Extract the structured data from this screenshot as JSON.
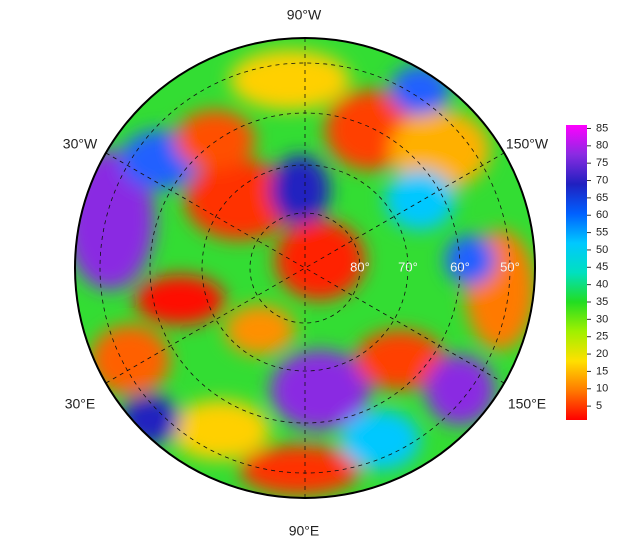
{
  "map": {
    "lon_labels": [
      "90°W",
      "30°W",
      "150°W",
      "30°E",
      "150°E",
      "90°E"
    ],
    "lat_labels": [
      "80°",
      "70°",
      "60°",
      "50°"
    ],
    "colorbar": {
      "ticks": [
        5,
        10,
        15,
        20,
        25,
        30,
        35,
        40,
        45,
        50,
        55,
        60,
        65,
        70,
        75,
        80,
        85
      ],
      "lim": [
        1,
        86
      ],
      "colors": [
        "#ff0000",
        "#ff7a00",
        "#ffe000",
        "#a0f000",
        "#22dd22",
        "#00e0c0",
        "#00c8ff",
        "#0060ff",
        "#2020c0",
        "#8a2be2",
        "#ff00ff"
      ]
    }
  }
}
